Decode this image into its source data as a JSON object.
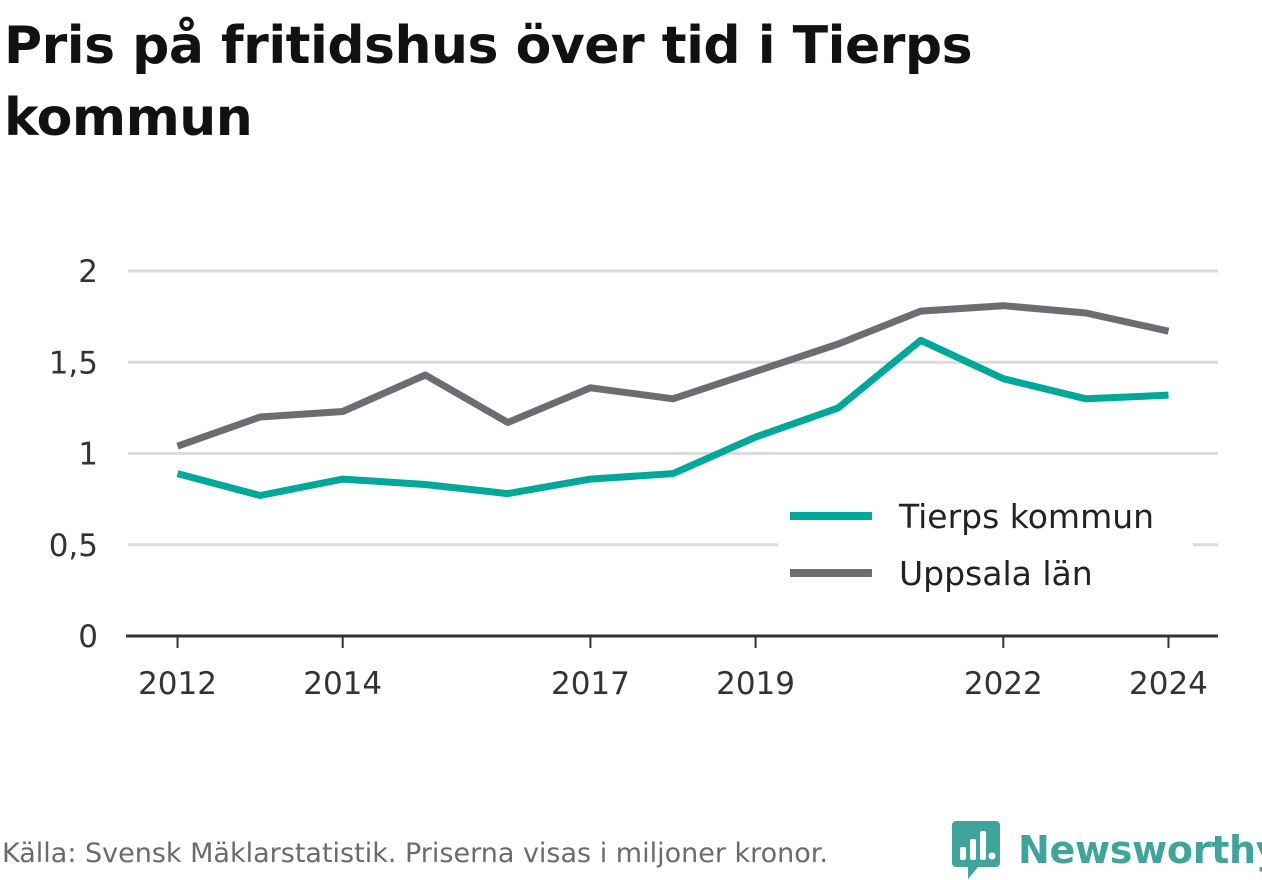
{
  "title": "Pris på fritidshus över tid i Tierps kommun",
  "footer": {
    "source_text": "Källa: Svensk Mäklarstatistik. Priserna visas i miljoner kronor."
  },
  "brand": {
    "name": "Newsworthy",
    "icon": "bar-chart-speech-bubble-icon",
    "color": "#3fa59b"
  },
  "legend": [
    {
      "label": "Tierps kommun",
      "color": "#00a89a"
    },
    {
      "label": "Uppsala län",
      "color": "#6d6c72"
    }
  ],
  "chart_data": {
    "type": "line",
    "title": "Pris på fritidshus över tid i Tierps kommun",
    "xlabel": "",
    "ylabel": "",
    "x": [
      2012,
      2013,
      2014,
      2015,
      2016,
      2017,
      2018,
      2019,
      2020,
      2021,
      2022,
      2023,
      2024
    ],
    "x_ticks": [
      "2012",
      "2014",
      "2017",
      "2019",
      "2022",
      "2024"
    ],
    "x_tick_values": [
      2012,
      2014,
      2017,
      2019,
      2022,
      2024
    ],
    "y_ticks": [
      "0",
      "0,5",
      "1",
      "1,5",
      "2"
    ],
    "y_tick_values": [
      0,
      0.5,
      1,
      1.5,
      2
    ],
    "ylim": [
      0,
      2
    ],
    "xlim": [
      2011.4,
      2024.6
    ],
    "grid": true,
    "legend_position": "bottom-right",
    "series": [
      {
        "name": "Tierps kommun",
        "color": "#00a89a",
        "values": [
          0.89,
          0.77,
          0.86,
          0.83,
          0.78,
          0.86,
          0.89,
          1.09,
          1.25,
          1.62,
          1.41,
          1.3,
          1.32
        ]
      },
      {
        "name": "Uppsala län",
        "color": "#6d6c72",
        "values": [
          1.04,
          1.2,
          1.23,
          1.43,
          1.17,
          1.36,
          1.3,
          1.45,
          1.6,
          1.78,
          1.81,
          1.77,
          1.67
        ]
      }
    ]
  }
}
